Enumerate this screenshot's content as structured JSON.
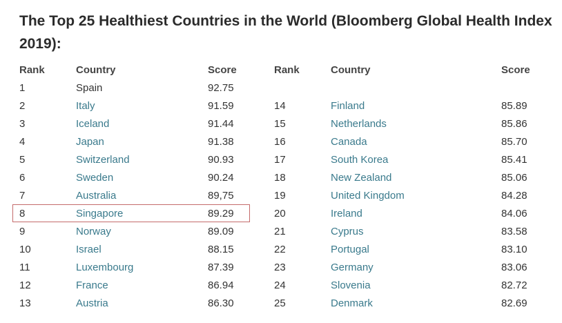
{
  "title": "The Top 25 Healthiest Countries in the World (Bloomberg Global Health Index 2019):",
  "headers": {
    "rank": "Rank",
    "country": "Country",
    "score": "Score"
  },
  "colors": {
    "link": "#3a7a8c",
    "highlight_border": "#c46a6a"
  },
  "left_rows": [
    {
      "rank": "1",
      "country": "Spain",
      "score": "92.75",
      "link": false
    },
    {
      "rank": "2",
      "country": "Italy",
      "score": "91.59",
      "link": true
    },
    {
      "rank": "3",
      "country": "Iceland",
      "score": "91.44",
      "link": true
    },
    {
      "rank": "4",
      "country": "Japan",
      "score": "91.38",
      "link": true
    },
    {
      "rank": "5",
      "country": "Switzerland",
      "score": "90.93",
      "link": true
    },
    {
      "rank": "6",
      "country": "Sweden",
      "score": "90.24",
      "link": true
    },
    {
      "rank": "7",
      "country": "Australia",
      "score": "89,75",
      "link": true
    },
    {
      "rank": "8",
      "country": "Singapore",
      "score": "89.29",
      "link": true,
      "highlighted": true
    },
    {
      "rank": "9",
      "country": "Norway",
      "score": "89.09",
      "link": true
    },
    {
      "rank": "10",
      "country": "Israel",
      "score": "88.15",
      "link": true
    },
    {
      "rank": "11",
      "country": "Luxembourg",
      "score": "87.39",
      "link": true
    },
    {
      "rank": "12",
      "country": "France",
      "score": "86.94",
      "link": true
    },
    {
      "rank": "13",
      "country": "Austria",
      "score": "86.30",
      "link": true
    }
  ],
  "right_rows": [
    {
      "rank": "",
      "country": "",
      "score": "",
      "link": false
    },
    {
      "rank": "14",
      "country": "Finland",
      "score": "85.89",
      "link": true
    },
    {
      "rank": "15",
      "country": "Netherlands",
      "score": "85.86",
      "link": true
    },
    {
      "rank": "16",
      "country": "Canada",
      "score": "85.70",
      "link": true
    },
    {
      "rank": "17",
      "country": "South Korea",
      "score": "85.41",
      "link": true
    },
    {
      "rank": "18",
      "country": "New Zealand",
      "score": "85.06",
      "link": true
    },
    {
      "rank": "19",
      "country": "United Kingdom",
      "score": "84.28",
      "link": true
    },
    {
      "rank": "20",
      "country": "Ireland",
      "score": "84.06",
      "link": true
    },
    {
      "rank": "21",
      "country": "Cyprus",
      "score": "83.58",
      "link": true
    },
    {
      "rank": "22",
      "country": "Portugal",
      "score": "83.10",
      "link": true
    },
    {
      "rank": "23",
      "country": "Germany",
      "score": "83.06",
      "link": true
    },
    {
      "rank": "24",
      "country": "Slovenia",
      "score": "82.72",
      "link": true
    },
    {
      "rank": "25",
      "country": "Denmark",
      "score": "82.69",
      "link": true
    }
  ]
}
